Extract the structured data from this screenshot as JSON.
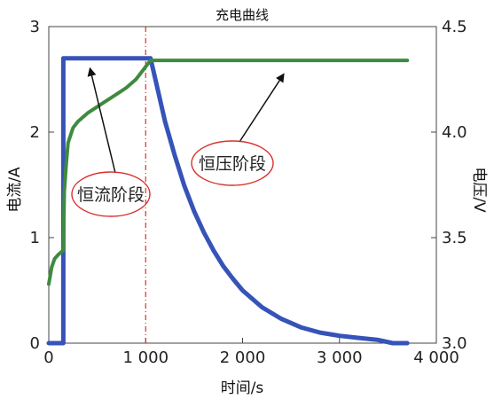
{
  "chart_data": {
    "type": "line",
    "title": "充电曲线",
    "xlabel": "时间/s",
    "ylabel_left": "电流/A",
    "ylabel_right": "电压/V",
    "xlim": [
      0,
      4000
    ],
    "ylim_left": [
      0,
      3
    ],
    "ylim_right": [
      3.0,
      4.5
    ],
    "x_ticks": [
      "0",
      "1 000",
      "2 000",
      "3 000",
      "4 000"
    ],
    "y_left_ticks": [
      "0",
      "1",
      "2",
      "3"
    ],
    "y_right_ticks": [
      "3.0",
      "3.5",
      "4.0",
      "4.5"
    ],
    "grid": false,
    "legend": "none",
    "colors": {
      "current": "#3653b8",
      "voltage": "#3f8a3f",
      "marker_line": "#d9302c",
      "ellipse": "#d9302c"
    },
    "series": [
      {
        "axis": "left",
        "x": [
          0,
          150,
          150,
          1000,
          1050,
          1100,
          1200,
          1300,
          1400,
          1500,
          1600,
          1700,
          1800,
          1900,
          2000,
          2200,
          2400,
          2600,
          2800,
          3000,
          3200,
          3400,
          3550,
          3700
        ],
        "y": [
          0.0,
          0.0,
          2.7,
          2.7,
          2.7,
          2.5,
          2.1,
          1.78,
          1.49,
          1.25,
          1.05,
          0.88,
          0.73,
          0.61,
          0.5,
          0.34,
          0.23,
          0.15,
          0.1,
          0.07,
          0.05,
          0.03,
          0.0,
          0.0
        ]
      },
      {
        "axis": "right",
        "x": [
          0,
          30,
          60,
          100,
          150,
          160,
          180,
          200,
          250,
          300,
          400,
          500,
          600,
          700,
          800,
          900,
          1000,
          1050,
          1200,
          1500,
          2000,
          2500,
          3000,
          3500,
          3700
        ],
        "y": [
          3.28,
          3.36,
          3.4,
          3.42,
          3.44,
          3.72,
          3.85,
          3.95,
          4.02,
          4.05,
          4.09,
          4.12,
          4.15,
          4.18,
          4.21,
          4.25,
          4.31,
          4.34,
          4.34,
          4.34,
          4.34,
          4.34,
          4.34,
          4.34,
          4.34
        ]
      }
    ],
    "vline_x": 1000,
    "annotations": [
      {
        "text": "恒流阶段",
        "arrow_to_x": 500,
        "arrow_to_y_left": 2.7
      },
      {
        "text": "恒压阶段",
        "arrow_to_x": 2550,
        "arrow_to_y_right": 4.34
      }
    ]
  }
}
